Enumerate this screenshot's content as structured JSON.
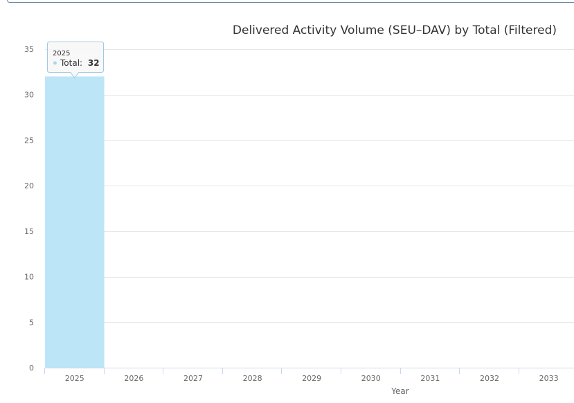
{
  "chart_data": {
    "type": "bar",
    "title": "Delivered Activity Volume (SEU–DAV) by Total (Filtered)",
    "xlabel": "Year",
    "ylabel": "",
    "categories": [
      "2025",
      "2026",
      "2027",
      "2028",
      "2029",
      "2030",
      "2031",
      "2032",
      "2033"
    ],
    "series": [
      {
        "name": "Total",
        "values": [
          32,
          0,
          0,
          0,
          0,
          0,
          0,
          0,
          0
        ],
        "color": "#bde5f8"
      }
    ],
    "ylim": [
      0,
      35
    ],
    "yticks": [
      0,
      5,
      10,
      15,
      20,
      25,
      30,
      35
    ],
    "grid": true,
    "legend": "none",
    "tooltip": {
      "category": "2025",
      "series_label": "Total:",
      "value": "32"
    }
  },
  "colors": {
    "gridline": "#e6e6e6",
    "axis": "#ccd6eb",
    "bar": "#bde5f8",
    "tooltip_border": "#9ec9e6",
    "tooltip_dot": "#a8d8f0"
  }
}
